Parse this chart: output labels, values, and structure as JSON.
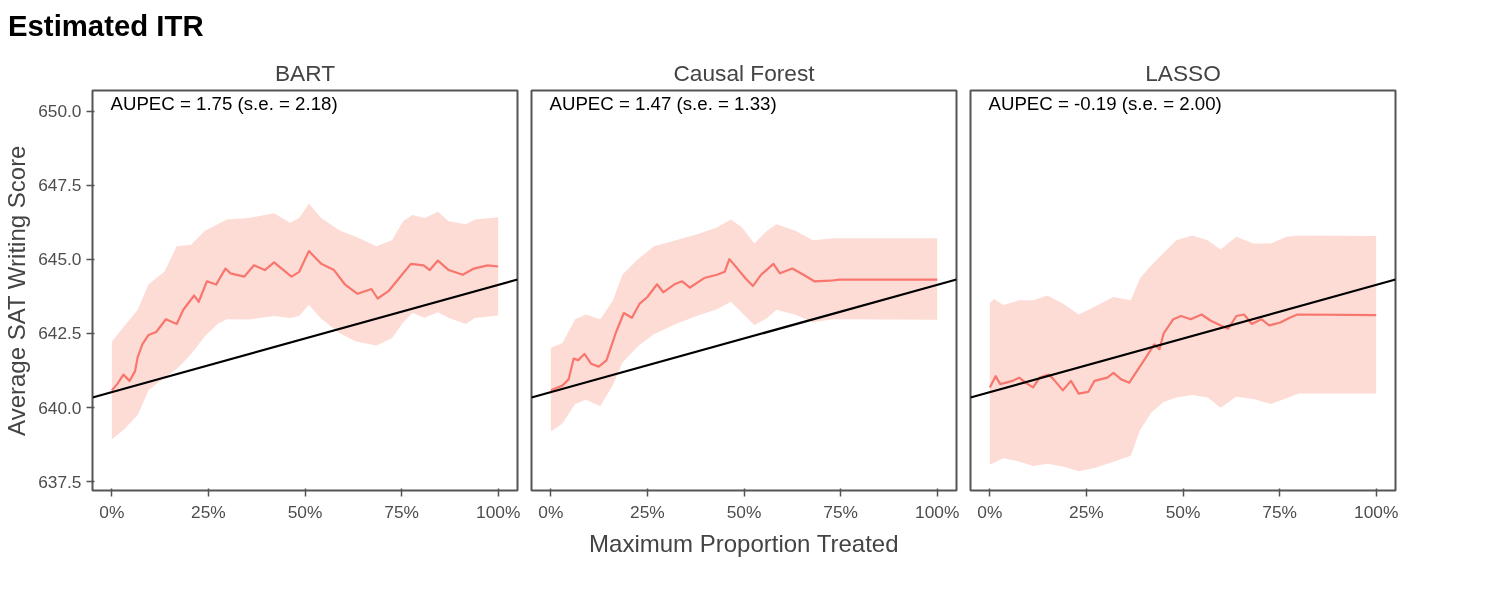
{
  "chart_data": [
    {
      "type": "line",
      "title": "Estimated ITR",
      "subtitle": "BART",
      "ylabel": "Average SAT Writing Score",
      "annotations": [
        "AUPEC = 1.75 (s.e. = 2.18)"
      ],
      "xlim": [
        -5,
        105
      ],
      "ylim": [
        637.2,
        650.7
      ],
      "xticks": [
        {
          "value": 0,
          "label": "0%"
        },
        {
          "value": 25,
          "label": "25%"
        },
        {
          "value": 50,
          "label": "50%"
        },
        {
          "value": 75,
          "label": "75%"
        },
        {
          "value": 100,
          "label": "100%"
        }
      ],
      "yticks": [
        637.5,
        {
          "value": 640,
          "label": "640.0"
        },
        642.5,
        {
          "value": 645,
          "label": "645.0"
        },
        647.5,
        {
          "value": 650,
          "label": "650.0"
        }
      ],
      "series": [
        {
          "type": "area",
          "color": "#fddcd6",
          "values": [
            null,
            null,
            null,
            null,
            null,
            null,
            null,
            null,
            null,
            null,
            null,
            null,
            null,
            null,
            null,
            null,
            null,
            null,
            null,
            null,
            null,
            null,
            null,
            null,
            null,
            null,
            null,
            null
          ],
          "x": [
            0,
            3,
            6.7,
            9.5,
            13.6,
            16.8,
            20.5,
            24.1,
            27.4,
            29.8,
            35.5,
            42,
            46.1,
            48.5,
            51,
            54.2,
            59.1,
            63.2,
            68.5,
            72.5,
            75.4,
            77.8,
            81,
            84.4,
            87.2,
            91.6,
            94,
            100
          ],
          "lower": [
            638.92,
            639.24,
            639.75,
            640.58,
            641.01,
            641.3,
            641.8,
            642.41,
            642.82,
            642.98,
            642.97,
            643.09,
            643.02,
            643.09,
            643.47,
            643.0,
            642.5,
            642.23,
            642.09,
            642.34,
            642.87,
            643.19,
            643.03,
            643.22,
            643.02,
            642.82,
            643.02,
            643.11
          ],
          "upper": [
            642.23,
            642.71,
            643.3,
            644.16,
            644.58,
            645.44,
            645.49,
            645.97,
            646.19,
            646.35,
            646.4,
            646.56,
            646.24,
            646.4,
            646.88,
            646.4,
            645.97,
            645.76,
            645.44,
            645.65,
            646.29,
            646.5,
            646.4,
            646.61,
            646.29,
            646.19,
            646.35,
            646.42
          ]
        },
        {
          "color": "#f8766d",
          "x": [
            0,
            1.4,
            3,
            4.6,
            6,
            6.7,
            7.9,
            9.5,
            11.5,
            14,
            16.8,
            18.5,
            21.3,
            22.5,
            24.6,
            27,
            29.4,
            30.7,
            34.3,
            36.8,
            39.6,
            42,
            46.5,
            48.5,
            51,
            54.2,
            57.5,
            60.3,
            63.6,
            67.2,
            68.8,
            71.7,
            75.4,
            77.4,
            80.7,
            82.3,
            84.4,
            87.2,
            90.8,
            93.7,
            97.3,
            100
          ],
          "values": [
            640.58,
            640.79,
            641.11,
            640.9,
            641.22,
            641.7,
            642.13,
            642.45,
            642.55,
            642.98,
            642.82,
            643.3,
            643.78,
            643.57,
            644.26,
            644.15,
            644.69,
            644.53,
            644.42,
            644.8,
            644.64,
            644.9,
            644.42,
            644.58,
            645.28,
            644.85,
            644.64,
            644.16,
            643.84,
            644.0,
            643.68,
            643.94,
            644.53,
            644.85,
            644.8,
            644.64,
            644.96,
            644.64,
            644.48,
            644.69,
            644.8,
            644.76
          ]
        },
        {
          "color": "#000000",
          "x": [
            -5,
            105
          ],
          "values": [
            640.34,
            644.32
          ]
        }
      ]
    },
    {
      "type": "line",
      "subtitle": "Causal Forest",
      "xlabel": "Maximum Proportion Treated",
      "tick_labels": "x",
      "annotations": [
        "AUPEC = 1.47 (s.e. = 1.33)"
      ],
      "xlim": [
        -5,
        105
      ],
      "ylim": [
        637.2,
        650.7
      ],
      "xticks": [
        {
          "value": 0,
          "label": "0%"
        },
        {
          "value": 25,
          "label": "25%"
        },
        {
          "value": 50,
          "label": "50%"
        },
        {
          "value": 75,
          "label": "75%"
        },
        {
          "value": 100,
          "label": "100%"
        }
      ],
      "series": [
        {
          "type": "area",
          "color": "#fddcd6",
          "values": [
            null,
            null,
            null,
            null,
            null,
            null,
            null,
            null,
            null,
            null,
            null,
            null,
            null,
            null,
            null,
            null,
            null,
            null,
            null,
            null,
            null
          ],
          "x": [
            0,
            3,
            6.3,
            9.1,
            12.8,
            16.1,
            18.5,
            22.6,
            26.7,
            32.4,
            38.1,
            43,
            46.6,
            49.5,
            52.7,
            56,
            58.4,
            63.3,
            67.8,
            73.1,
            100
          ],
          "lower": [
            639.19,
            639.46,
            640.12,
            640.26,
            640.04,
            640.77,
            641.51,
            642.08,
            642.47,
            642.82,
            643.11,
            643.32,
            643.57,
            643.19,
            642.78,
            643.02,
            643.3,
            643.13,
            642.88,
            642.98,
            642.96
          ],
          "upper": [
            642.02,
            642.18,
            642.98,
            643.14,
            642.98,
            643.62,
            644.48,
            645.01,
            645.44,
            645.65,
            645.86,
            646.08,
            646.35,
            646.08,
            645.54,
            645.97,
            646.19,
            645.97,
            645.65,
            645.71,
            645.71
          ]
        },
        {
          "color": "#f8766d",
          "x": [
            0,
            3,
            4.6,
            5.9,
            7.1,
            8.7,
            10.4,
            12.4,
            14.4,
            16.9,
            18.9,
            21,
            23,
            25,
            27.5,
            29.1,
            32,
            34,
            36,
            39.7,
            43,
            45,
            46.2,
            48.3,
            50.3,
            52.3,
            54.4,
            57.6,
            59.3,
            62.5,
            65.4,
            68.2,
            72.3,
            74.7,
            100
          ],
          "values": [
            640.58,
            640.74,
            640.95,
            641.65,
            641.6,
            641.81,
            641.48,
            641.38,
            641.59,
            642.55,
            643.19,
            643.03,
            643.51,
            643.73,
            644.16,
            643.89,
            644.16,
            644.26,
            644.05,
            644.37,
            644.48,
            644.58,
            645.01,
            644.69,
            644.37,
            644.1,
            644.48,
            644.85,
            644.53,
            644.69,
            644.48,
            644.26,
            644.28,
            644.32,
            644.32
          ]
        },
        {
          "color": "#000000",
          "x": [
            -5,
            105
          ],
          "values": [
            640.34,
            644.32
          ]
        }
      ]
    },
    {
      "type": "line",
      "subtitle": "LASSO",
      "tick_labels": "x",
      "annotations": [
        "AUPEC = -0.19 (s.e. = 2.00)"
      ],
      "xlim": [
        -5,
        105
      ],
      "ylim": [
        637.2,
        650.7
      ],
      "xticks": [
        {
          "value": 0,
          "label": "0%"
        },
        {
          "value": 25,
          "label": "25%"
        },
        {
          "value": 50,
          "label": "50%"
        },
        {
          "value": 75,
          "label": "75%"
        },
        {
          "value": 100,
          "label": "100%"
        }
      ],
      "series": [
        {
          "type": "area",
          "color": "#fddcd6",
          "values": [
            null,
            null,
            null,
            null,
            null,
            null,
            null,
            null,
            null,
            null,
            null,
            null,
            null,
            null,
            null,
            null,
            null,
            null,
            null,
            null,
            null,
            null,
            null,
            null
          ],
          "x": [
            0,
            1,
            3.5,
            7.6,
            11.2,
            14.9,
            18.9,
            23,
            27.1,
            32,
            36.5,
            38.9,
            41.8,
            45,
            48.3,
            52.4,
            56.4,
            59.7,
            63.8,
            68.2,
            72.7,
            76.8,
            80,
            100
          ],
          "lower": [
            638.07,
            638.13,
            638.29,
            638.18,
            638.03,
            638.1,
            638.01,
            637.85,
            637.96,
            638.17,
            638.37,
            639.24,
            639.83,
            640.19,
            640.34,
            640.42,
            640.34,
            639.99,
            640.36,
            640.29,
            640.12,
            640.31,
            640.47,
            640.47
          ],
          "upper": [
            643.51,
            643.67,
            643.46,
            643.62,
            643.62,
            643.78,
            643.51,
            643.14,
            643.4,
            643.73,
            643.62,
            644.37,
            644.8,
            645.22,
            645.65,
            645.81,
            645.65,
            645.33,
            645.76,
            645.54,
            645.54,
            645.76,
            645.81,
            645.79
          ]
        },
        {
          "color": "#f8766d",
          "x": [
            0,
            1.5,
            2.7,
            5.9,
            7.6,
            9.2,
            11.2,
            12.9,
            15.3,
            16.5,
            18.9,
            21,
            23,
            25.5,
            27.1,
            30.4,
            32,
            34,
            36.1,
            39.9,
            42.6,
            43.9,
            45,
            47.5,
            49.5,
            52,
            54.8,
            57.2,
            59.8,
            61.7,
            63.8,
            65.8,
            67.8,
            70.3,
            72.3,
            75.2,
            77.6,
            79.6,
            100
          ],
          "values": [
            640.68,
            641.06,
            640.79,
            640.9,
            641.01,
            640.84,
            640.68,
            641.01,
            641.11,
            640.95,
            640.58,
            640.9,
            640.47,
            640.53,
            640.9,
            641.01,
            641.17,
            640.95,
            640.84,
            641.59,
            642.13,
            641.97,
            642.5,
            642.98,
            643.09,
            642.98,
            643.14,
            642.93,
            642.77,
            642.66,
            643.09,
            643.14,
            642.82,
            642.98,
            642.77,
            642.87,
            643.03,
            643.14,
            643.12
          ]
        },
        {
          "color": "#000000",
          "x": [
            -5,
            105
          ],
          "values": [
            640.34,
            644.32
          ]
        }
      ]
    }
  ]
}
